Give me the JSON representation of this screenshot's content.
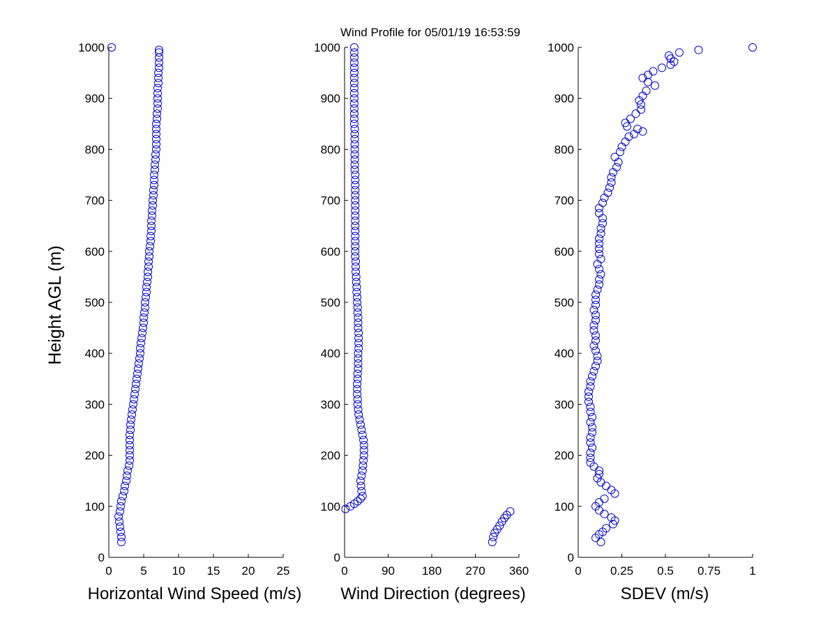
{
  "chart_data": {
    "type": "scatter",
    "title": "Wind Profile for  05/01/19 16:53:59",
    "ylabel": "Height AGL (m)",
    "marker_color": "#0000cc",
    "panels": [
      {
        "xlabel": "Horizontal Wind Speed (m/s)",
        "xlim": [
          0,
          25
        ],
        "ylim": [
          0,
          1000
        ],
        "xticks": [
          "0",
          "5",
          "10",
          "15",
          "20",
          "25"
        ],
        "yticks": [
          "0",
          "100",
          "200",
          "300",
          "400",
          "500",
          "600",
          "700",
          "800",
          "900",
          "1000"
        ],
        "points": [
          [
            1.8,
            30
          ],
          [
            1.8,
            40
          ],
          [
            1.7,
            50
          ],
          [
            1.6,
            60
          ],
          [
            1.5,
            70
          ],
          [
            1.4,
            80
          ],
          [
            1.6,
            90
          ],
          [
            1.7,
            100
          ],
          [
            1.8,
            110
          ],
          [
            2.0,
            120
          ],
          [
            2.2,
            130
          ],
          [
            2.3,
            140
          ],
          [
            2.5,
            150
          ],
          [
            2.6,
            160
          ],
          [
            2.7,
            170
          ],
          [
            2.9,
            180
          ],
          [
            3.0,
            190
          ],
          [
            3.0,
            200
          ],
          [
            3.0,
            210
          ],
          [
            3.0,
            220
          ],
          [
            3.0,
            230
          ],
          [
            3.0,
            240
          ],
          [
            3.1,
            250
          ],
          [
            3.1,
            260
          ],
          [
            3.2,
            270
          ],
          [
            3.3,
            280
          ],
          [
            3.4,
            290
          ],
          [
            3.5,
            300
          ],
          [
            3.6,
            310
          ],
          [
            3.7,
            320
          ],
          [
            3.8,
            330
          ],
          [
            3.9,
            340
          ],
          [
            4.0,
            350
          ],
          [
            4.1,
            360
          ],
          [
            4.2,
            370
          ],
          [
            4.3,
            380
          ],
          [
            4.4,
            390
          ],
          [
            4.5,
            400
          ],
          [
            4.5,
            410
          ],
          [
            4.6,
            420
          ],
          [
            4.7,
            430
          ],
          [
            4.8,
            440
          ],
          [
            4.9,
            450
          ],
          [
            5.0,
            460
          ],
          [
            5.0,
            470
          ],
          [
            5.1,
            480
          ],
          [
            5.2,
            490
          ],
          [
            5.2,
            500
          ],
          [
            5.3,
            510
          ],
          [
            5.4,
            520
          ],
          [
            5.4,
            530
          ],
          [
            5.5,
            540
          ],
          [
            5.6,
            550
          ],
          [
            5.6,
            560
          ],
          [
            5.7,
            570
          ],
          [
            5.7,
            580
          ],
          [
            5.8,
            590
          ],
          [
            5.8,
            600
          ],
          [
            5.9,
            610
          ],
          [
            6.0,
            620
          ],
          [
            6.0,
            630
          ],
          [
            6.1,
            640
          ],
          [
            6.1,
            650
          ],
          [
            6.1,
            660
          ],
          [
            6.2,
            670
          ],
          [
            6.2,
            680
          ],
          [
            6.3,
            690
          ],
          [
            6.3,
            700
          ],
          [
            6.4,
            710
          ],
          [
            6.4,
            720
          ],
          [
            6.5,
            730
          ],
          [
            6.5,
            740
          ],
          [
            6.5,
            750
          ],
          [
            6.6,
            760
          ],
          [
            6.6,
            770
          ],
          [
            6.7,
            780
          ],
          [
            6.7,
            790
          ],
          [
            6.8,
            800
          ],
          [
            6.8,
            810
          ],
          [
            6.8,
            820
          ],
          [
            6.8,
            830
          ],
          [
            6.8,
            840
          ],
          [
            6.8,
            850
          ],
          [
            6.9,
            860
          ],
          [
            6.9,
            870
          ],
          [
            7.0,
            880
          ],
          [
            7.0,
            890
          ],
          [
            7.0,
            900
          ],
          [
            7.0,
            910
          ],
          [
            7.0,
            920
          ],
          [
            7.1,
            930
          ],
          [
            7.1,
            940
          ],
          [
            7.1,
            950
          ],
          [
            7.2,
            960
          ],
          [
            7.2,
            970
          ],
          [
            7.2,
            980
          ],
          [
            7.2,
            990
          ],
          [
            7.2,
            995
          ],
          [
            0.4,
            1000
          ]
        ]
      },
      {
        "xlabel": "Wind Direction (degrees)",
        "xlim": [
          0,
          360
        ],
        "ylim": [
          0,
          1000
        ],
        "xticks": [
          "0",
          "90",
          "180",
          "270",
          "360"
        ],
        "yticks": [
          "0",
          "100",
          "200",
          "300",
          "400",
          "500",
          "600",
          "700",
          "800",
          "900",
          "1000"
        ],
        "points": [
          [
            305,
            30
          ],
          [
            307,
            40
          ],
          [
            310,
            48
          ],
          [
            315,
            55
          ],
          [
            320,
            62
          ],
          [
            325,
            70
          ],
          [
            330,
            77
          ],
          [
            335,
            83
          ],
          [
            342,
            90
          ],
          [
            2,
            95
          ],
          [
            12,
            100
          ],
          [
            20,
            105
          ],
          [
            27,
            110
          ],
          [
            33,
            115
          ],
          [
            37,
            120
          ],
          [
            35,
            130
          ],
          [
            34,
            140
          ],
          [
            33,
            150
          ],
          [
            35,
            160
          ],
          [
            37,
            170
          ],
          [
            38,
            180
          ],
          [
            39,
            190
          ],
          [
            40,
            200
          ],
          [
            40,
            210
          ],
          [
            40,
            220
          ],
          [
            39,
            230
          ],
          [
            37,
            240
          ],
          [
            35,
            250
          ],
          [
            33,
            260
          ],
          [
            31,
            270
          ],
          [
            29,
            280
          ],
          [
            28,
            290
          ],
          [
            27,
            300
          ],
          [
            27,
            310
          ],
          [
            26,
            320
          ],
          [
            26,
            330
          ],
          [
            26,
            340
          ],
          [
            27,
            350
          ],
          [
            27,
            360
          ],
          [
            28,
            370
          ],
          [
            28,
            380
          ],
          [
            28,
            390
          ],
          [
            28,
            400
          ],
          [
            29,
            410
          ],
          [
            29,
            420
          ],
          [
            29,
            430
          ],
          [
            29,
            440
          ],
          [
            28,
            450
          ],
          [
            28,
            460
          ],
          [
            28,
            470
          ],
          [
            27,
            480
          ],
          [
            27,
            490
          ],
          [
            26,
            500
          ],
          [
            26,
            510
          ],
          [
            25,
            520
          ],
          [
            25,
            530
          ],
          [
            24,
            540
          ],
          [
            24,
            550
          ],
          [
            23,
            560
          ],
          [
            23,
            570
          ],
          [
            23,
            580
          ],
          [
            22,
            590
          ],
          [
            22,
            600
          ],
          [
            22,
            610
          ],
          [
            22,
            620
          ],
          [
            22,
            630
          ],
          [
            22,
            640
          ],
          [
            22,
            650
          ],
          [
            22,
            660
          ],
          [
            22,
            670
          ],
          [
            22,
            680
          ],
          [
            22,
            690
          ],
          [
            22,
            700
          ],
          [
            22,
            710
          ],
          [
            22,
            720
          ],
          [
            22,
            730
          ],
          [
            22,
            740
          ],
          [
            22,
            750
          ],
          [
            21,
            760
          ],
          [
            21,
            770
          ],
          [
            21,
            780
          ],
          [
            21,
            790
          ],
          [
            21,
            800
          ],
          [
            21,
            810
          ],
          [
            21,
            820
          ],
          [
            21,
            830
          ],
          [
            21,
            840
          ],
          [
            20,
            850
          ],
          [
            20,
            860
          ],
          [
            20,
            870
          ],
          [
            20,
            880
          ],
          [
            20,
            890
          ],
          [
            20,
            900
          ],
          [
            20,
            910
          ],
          [
            20,
            920
          ],
          [
            20,
            930
          ],
          [
            20,
            940
          ],
          [
            20,
            950
          ],
          [
            20,
            960
          ],
          [
            20,
            970
          ],
          [
            20,
            980
          ],
          [
            20,
            990
          ],
          [
            20,
            1000
          ]
        ]
      },
      {
        "xlabel": "SDEV  (m/s)",
        "xlim": [
          0,
          1
        ],
        "ylim": [
          0,
          1000
        ],
        "xticks": [
          "0",
          "0.25",
          "0.5",
          "0.75",
          "1"
        ],
        "yticks": [
          "0",
          "100",
          "200",
          "300",
          "400",
          "500",
          "600",
          "700",
          "800",
          "900",
          "1000"
        ],
        "points": [
          [
            0.13,
            30
          ],
          [
            0.1,
            38
          ],
          [
            0.12,
            45
          ],
          [
            0.14,
            50
          ],
          [
            0.16,
            57
          ],
          [
            0.2,
            65
          ],
          [
            0.21,
            72
          ],
          [
            0.19,
            78
          ],
          [
            0.15,
            85
          ],
          [
            0.12,
            92
          ],
          [
            0.1,
            100
          ],
          [
            0.12,
            108
          ],
          [
            0.15,
            115
          ],
          [
            0.21,
            125
          ],
          [
            0.19,
            132
          ],
          [
            0.16,
            140
          ],
          [
            0.13,
            147
          ],
          [
            0.11,
            155
          ],
          [
            0.12,
            163
          ],
          [
            0.12,
            170
          ],
          [
            0.09,
            178
          ],
          [
            0.07,
            186
          ],
          [
            0.07,
            195
          ],
          [
            0.07,
            205
          ],
          [
            0.08,
            215
          ],
          [
            0.07,
            225
          ],
          [
            0.07,
            235
          ],
          [
            0.08,
            245
          ],
          [
            0.08,
            255
          ],
          [
            0.07,
            265
          ],
          [
            0.08,
            275
          ],
          [
            0.07,
            285
          ],
          [
            0.07,
            295
          ],
          [
            0.06,
            305
          ],
          [
            0.06,
            315
          ],
          [
            0.06,
            325
          ],
          [
            0.07,
            335
          ],
          [
            0.07,
            345
          ],
          [
            0.08,
            355
          ],
          [
            0.09,
            365
          ],
          [
            0.1,
            375
          ],
          [
            0.11,
            385
          ],
          [
            0.11,
            395
          ],
          [
            0.1,
            405
          ],
          [
            0.09,
            415
          ],
          [
            0.1,
            425
          ],
          [
            0.1,
            435
          ],
          [
            0.09,
            445
          ],
          [
            0.09,
            455
          ],
          [
            0.1,
            465
          ],
          [
            0.1,
            475
          ],
          [
            0.09,
            485
          ],
          [
            0.1,
            495
          ],
          [
            0.1,
            505
          ],
          [
            0.1,
            515
          ],
          [
            0.11,
            525
          ],
          [
            0.12,
            535
          ],
          [
            0.12,
            545
          ],
          [
            0.13,
            555
          ],
          [
            0.12,
            565
          ],
          [
            0.11,
            575
          ],
          [
            0.13,
            585
          ],
          [
            0.12,
            595
          ],
          [
            0.12,
            605
          ],
          [
            0.12,
            615
          ],
          [
            0.12,
            625
          ],
          [
            0.13,
            635
          ],
          [
            0.13,
            645
          ],
          [
            0.14,
            655
          ],
          [
            0.14,
            665
          ],
          [
            0.12,
            675
          ],
          [
            0.12,
            685
          ],
          [
            0.14,
            695
          ],
          [
            0.15,
            705
          ],
          [
            0.17,
            715
          ],
          [
            0.18,
            725
          ],
          [
            0.19,
            735
          ],
          [
            0.19,
            745
          ],
          [
            0.2,
            755
          ],
          [
            0.22,
            765
          ],
          [
            0.23,
            775
          ],
          [
            0.21,
            785
          ],
          [
            0.24,
            795
          ],
          [
            0.25,
            805
          ],
          [
            0.27,
            815
          ],
          [
            0.29,
            825
          ],
          [
            0.32,
            830
          ],
          [
            0.37,
            835
          ],
          [
            0.34,
            840
          ],
          [
            0.28,
            845
          ],
          [
            0.27,
            852
          ],
          [
            0.3,
            860
          ],
          [
            0.33,
            870
          ],
          [
            0.36,
            878
          ],
          [
            0.36,
            888
          ],
          [
            0.35,
            896
          ],
          [
            0.37,
            905
          ],
          [
            0.39,
            915
          ],
          [
            0.44,
            925
          ],
          [
            0.4,
            932
          ],
          [
            0.37,
            940
          ],
          [
            0.4,
            946
          ],
          [
            0.43,
            953
          ],
          [
            0.48,
            960
          ],
          [
            0.53,
            966
          ],
          [
            0.55,
            972
          ],
          [
            0.53,
            978
          ],
          [
            0.52,
            984
          ],
          [
            0.58,
            990
          ],
          [
            0.69,
            995
          ],
          [
            1.0,
            1000
          ]
        ]
      }
    ]
  }
}
